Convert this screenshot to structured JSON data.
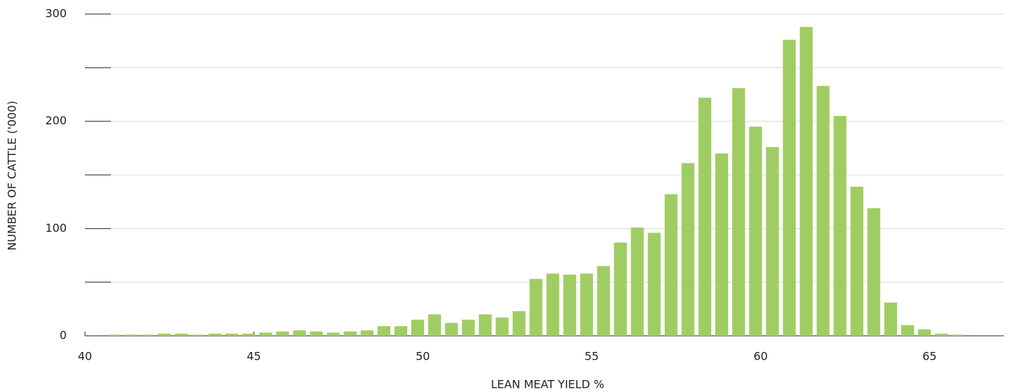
{
  "chart_data": {
    "type": "histogram",
    "xlabel": "LEAN MEAT YIELD %",
    "ylabel": "NUMBER OF CATTLE ('000)",
    "bins": [
      40.6,
      41.1,
      41.6,
      42.1,
      42.6,
      43.1,
      43.6,
      44.1,
      44.6,
      45.1,
      45.6,
      46.1,
      46.6,
      47.1,
      47.6,
      48.1,
      48.6,
      49.1,
      49.6,
      50.1,
      50.6,
      51.1,
      51.6,
      52.1,
      52.6,
      53.1,
      53.6,
      54.1,
      54.6,
      55.1,
      55.6,
      56.1,
      56.6,
      57.1,
      57.6,
      58.1,
      58.6,
      59.1,
      59.6,
      60.1,
      60.6,
      61.1,
      61.6,
      62.1,
      62.6,
      63.1,
      63.6,
      64.1,
      64.6,
      65.1,
      65.6,
      66.1
    ],
    "values": [
      1,
      1,
      1,
      2,
      2,
      1,
      2,
      2,
      2,
      3,
      4,
      5,
      4,
      3,
      4,
      5,
      9,
      9,
      15,
      20,
      12,
      15,
      20,
      17,
      23,
      53,
      58,
      57,
      58,
      65,
      87,
      101,
      96,
      132,
      161,
      222,
      170,
      231,
      195,
      176,
      276,
      288,
      233,
      205,
      139,
      119,
      31,
      10,
      6,
      2,
      1
    ],
    "color": "#a0cd63",
    "xlim": [
      40,
      67.2
    ],
    "xticks": [
      40,
      45,
      50,
      55,
      60,
      65
    ],
    "ylim": [
      0,
      300
    ],
    "yticks": [
      0,
      100,
      200,
      300
    ],
    "minor_yticks": [
      50,
      150,
      250
    ],
    "grid": true
  }
}
